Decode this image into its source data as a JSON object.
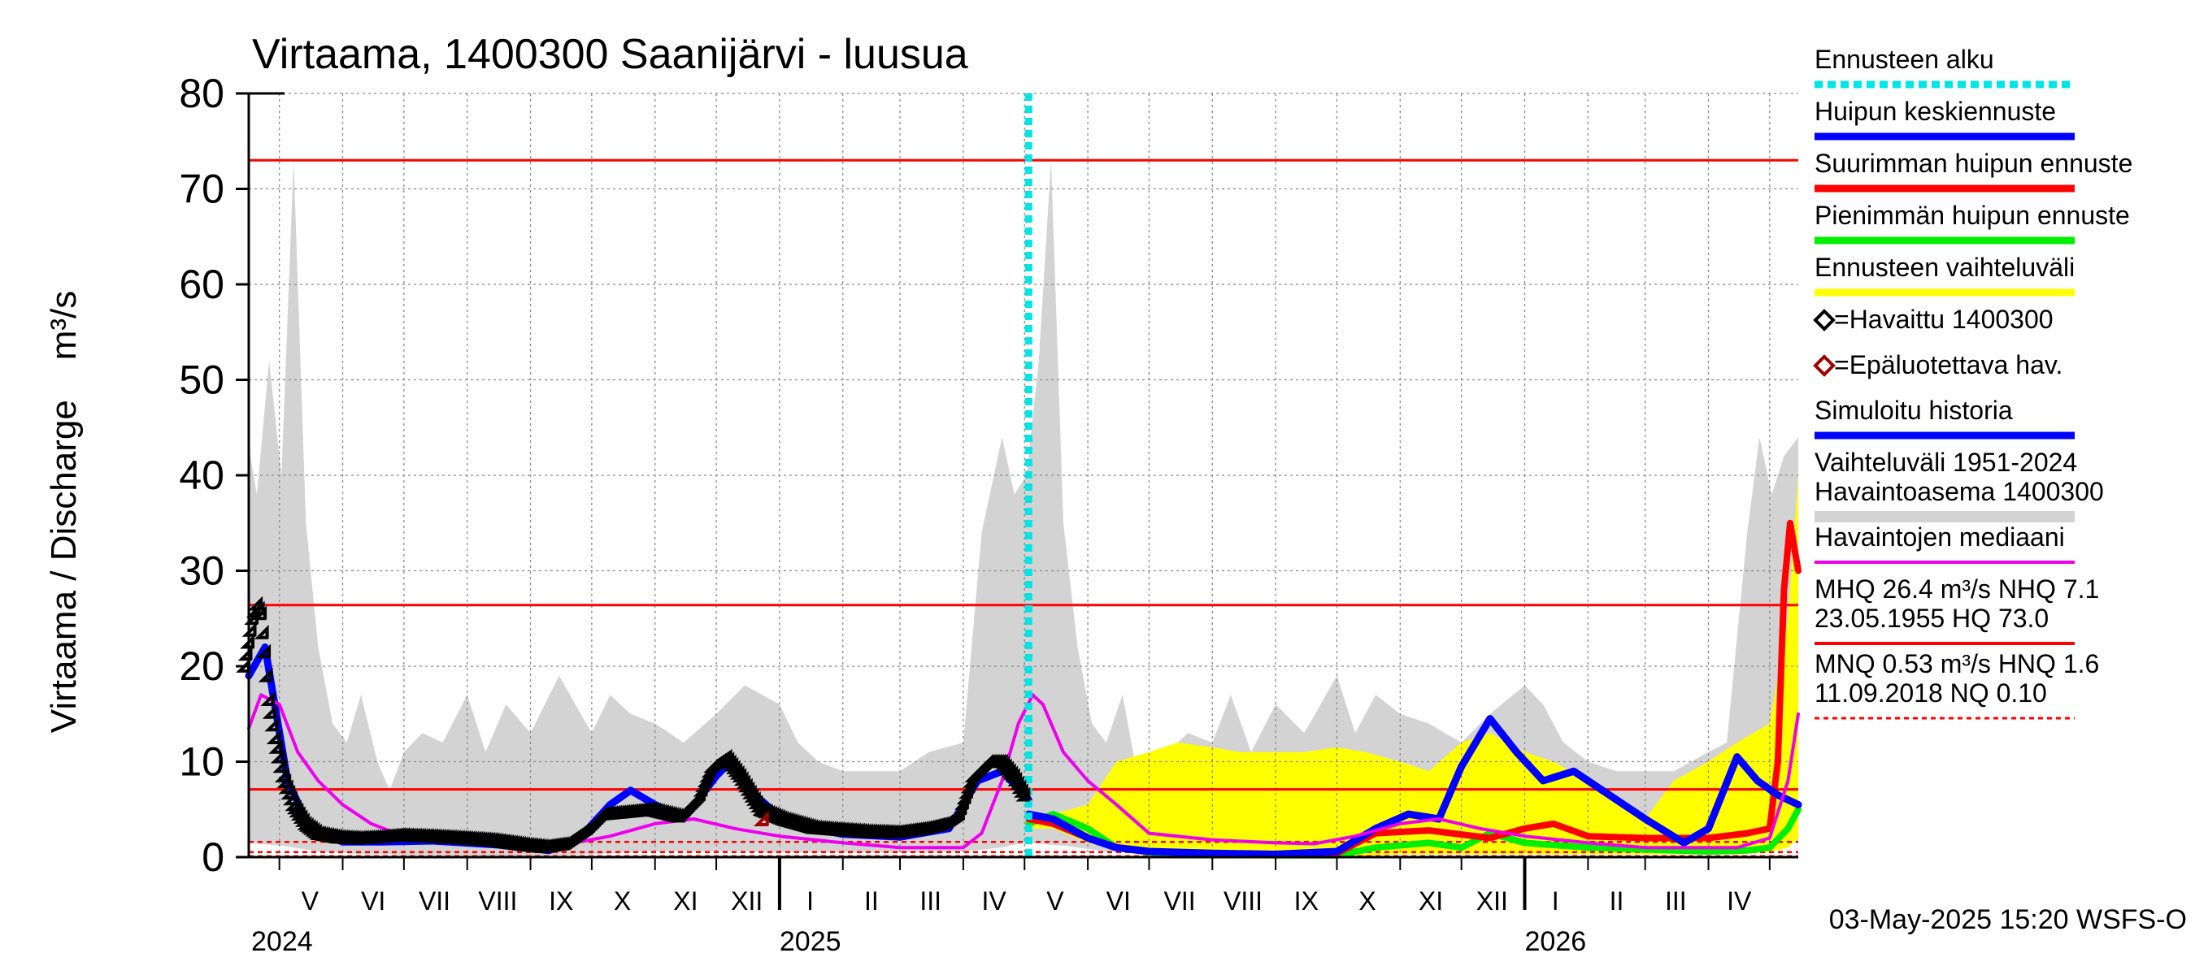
{
  "chart_data": {
    "type": "line",
    "title": "Virtaama, 1400300 Saanijärvi - luusua",
    "ylabel": "Virtaama / Discharge    m³/s",
    "ylim": [
      0,
      80
    ],
    "yticks": [
      0,
      10,
      20,
      30,
      40,
      50,
      60,
      70,
      80
    ],
    "x_range": [
      "2024-04-16",
      "2026-05-15"
    ],
    "x_grid": true,
    "y_grid": true,
    "months": [
      {
        "label": "V",
        "date": "2024-05-16"
      },
      {
        "label": "VI",
        "date": "2024-06-16"
      },
      {
        "label": "VII",
        "date": "2024-07-16"
      },
      {
        "label": "VIII",
        "date": "2024-08-16"
      },
      {
        "label": "IX",
        "date": "2024-09-16"
      },
      {
        "label": "X",
        "date": "2024-10-16"
      },
      {
        "label": "XI",
        "date": "2024-11-16"
      },
      {
        "label": "XII",
        "date": "2024-12-16"
      },
      {
        "label": "I",
        "date": "2025-01-16"
      },
      {
        "label": "II",
        "date": "2025-02-15"
      },
      {
        "label": "III",
        "date": "2025-03-16"
      },
      {
        "label": "IV",
        "date": "2025-04-16"
      },
      {
        "label": "V",
        "date": "2025-05-16"
      },
      {
        "label": "VI",
        "date": "2025-06-16"
      },
      {
        "label": "VII",
        "date": "2025-07-16"
      },
      {
        "label": "VIII",
        "date": "2025-08-16"
      },
      {
        "label": "IX",
        "date": "2025-09-16"
      },
      {
        "label": "X",
        "date": "2025-10-16"
      },
      {
        "label": "XI",
        "date": "2025-11-16"
      },
      {
        "label": "XII",
        "date": "2025-12-16"
      },
      {
        "label": "I",
        "date": "2026-01-16"
      },
      {
        "label": "II",
        "date": "2026-02-15"
      },
      {
        "label": "III",
        "date": "2026-03-16"
      },
      {
        "label": "IV",
        "date": "2026-04-16"
      }
    ],
    "month_bounds": [
      "2024-05-01",
      "2024-06-01",
      "2024-07-01",
      "2024-08-01",
      "2024-09-01",
      "2024-10-01",
      "2024-11-01",
      "2024-12-01",
      "2025-01-01",
      "2025-02-01",
      "2025-03-01",
      "2025-04-01",
      "2025-05-01",
      "2025-06-01",
      "2025-07-01",
      "2025-08-01",
      "2025-09-01",
      "2025-10-01",
      "2025-11-01",
      "2025-12-01",
      "2026-01-01",
      "2026-02-01",
      "2026-03-01",
      "2026-04-01",
      "2026-05-01"
    ],
    "year_labels": [
      {
        "label": "2024",
        "date": "2024-04-16"
      },
      {
        "label": "2025",
        "date": "2025-01-01"
      },
      {
        "label": "2026",
        "date": "2026-01-01"
      }
    ],
    "forecast_start": "2025-05-03",
    "reference_lines": [
      {
        "value": 73.0,
        "style": "solid",
        "color": "#ff0000"
      },
      {
        "value": 26.4,
        "style": "solid",
        "color": "#ff0000"
      },
      {
        "value": 7.1,
        "style": "solid",
        "color": "#ff0000"
      },
      {
        "value": 1.6,
        "style": "dashed",
        "color": "#ff0000"
      },
      {
        "value": 0.53,
        "style": "dashed",
        "color": "#ff0000"
      },
      {
        "value": 0.1,
        "style": "dashed",
        "color": "#ff0000"
      }
    ],
    "historical_range": {
      "x": [
        "2024-04-16",
        "2024-04-20",
        "2024-04-26",
        "2024-05-02",
        "2024-05-08",
        "2024-05-14",
        "2024-05-20",
        "2024-05-27",
        "2024-06-03",
        "2024-06-10",
        "2024-06-18",
        "2024-06-24",
        "2024-07-01",
        "2024-07-10",
        "2024-07-20",
        "2024-08-01",
        "2024-08-10",
        "2024-08-20",
        "2024-09-01",
        "2024-09-15",
        "2024-10-01",
        "2024-10-10",
        "2024-10-20",
        "2024-11-01",
        "2024-11-15",
        "2024-12-01",
        "2024-12-15",
        "2025-01-01",
        "2025-01-10",
        "2025-01-20",
        "2025-02-01",
        "2025-02-15",
        "2025-03-01",
        "2025-03-15",
        "2025-04-01",
        "2025-04-10",
        "2025-04-20",
        "2025-04-26",
        "2025-05-02",
        "2025-05-08",
        "2025-05-14",
        "2025-05-20",
        "2025-05-27",
        "2025-06-03",
        "2025-06-10",
        "2025-06-18",
        "2025-06-24",
        "2025-07-01",
        "2025-07-10",
        "2025-07-20",
        "2025-08-01",
        "2025-08-10",
        "2025-08-20",
        "2025-09-01",
        "2025-09-15",
        "2025-10-01",
        "2025-10-10",
        "2025-10-20",
        "2025-11-01",
        "2025-11-15",
        "2025-12-01",
        "2025-12-15",
        "2026-01-01",
        "2026-01-10",
        "2026-01-20",
        "2026-02-01",
        "2026-02-15",
        "2026-03-01",
        "2026-03-15",
        "2026-04-01",
        "2026-04-10",
        "2026-04-20",
        "2026-04-26",
        "2026-05-02",
        "2026-05-08",
        "2026-05-15"
      ],
      "low": [
        1.5,
        1.4,
        1.3,
        1.2,
        1.0,
        0.8,
        0.6,
        0.5,
        0.4,
        0.3,
        0.3,
        0.3,
        0.2,
        0.2,
        0.2,
        0.2,
        0.1,
        0.1,
        0.1,
        0.2,
        0.3,
        0.4,
        0.5,
        0.6,
        0.6,
        0.6,
        0.6,
        0.5,
        0.5,
        0.5,
        0.5,
        0.5,
        0.5,
        0.5,
        0.6,
        0.8,
        1.0,
        1.3,
        1.5,
        1.4,
        1.3,
        1.2,
        1.0,
        0.8,
        0.6,
        0.5,
        0.4,
        0.3,
        0.3,
        0.3,
        0.2,
        0.2,
        0.2,
        0.2,
        0.1,
        0.1,
        0.1,
        0.2,
        0.3,
        0.4,
        0.5,
        0.6,
        0.6,
        0.6,
        0.6,
        0.5,
        0.5,
        0.5,
        0.5,
        0.5,
        0.6,
        0.8,
        1.0,
        1.3,
        1.5,
        1.6
      ],
      "high": [
        43,
        38,
        52,
        40,
        73,
        35,
        22,
        14,
        12,
        17,
        10,
        7,
        11,
        13,
        12,
        17,
        11,
        16,
        13,
        19,
        13,
        17,
        15,
        14,
        12,
        15,
        18,
        16,
        12,
        10,
        9,
        9,
        9,
        11,
        12,
        34,
        44,
        38,
        40,
        52,
        73,
        35,
        22,
        14,
        12,
        17,
        10,
        7,
        11,
        13,
        12,
        17,
        11,
        16,
        13,
        19,
        13,
        17,
        15,
        14,
        12,
        15,
        18,
        16,
        12,
        10,
        9,
        9,
        9,
        11,
        12,
        34,
        44,
        38,
        42,
        44
      ]
    },
    "forecast_band": {
      "x": [
        "2025-05-03",
        "2025-05-15",
        "2025-06-01",
        "2025-06-15",
        "2025-07-01",
        "2025-07-15",
        "2025-08-01",
        "2025-08-15",
        "2025-09-01",
        "2025-09-15",
        "2025-10-01",
        "2025-10-15",
        "2025-11-01",
        "2025-11-15",
        "2025-12-01",
        "2025-12-15",
        "2026-01-01",
        "2026-01-15",
        "2026-02-01",
        "2026-02-15",
        "2026-03-01",
        "2026-03-15",
        "2026-04-01",
        "2026-04-15",
        "2026-05-01",
        "2026-05-10",
        "2026-05-15"
      ],
      "low": [
        3.0,
        3.0,
        1.5,
        0.8,
        0.6,
        0.4,
        0.3,
        0.3,
        0.2,
        0.2,
        0.2,
        0.2,
        0.3,
        0.3,
        0.3,
        0.3,
        0.3,
        0.3,
        0.3,
        0.3,
        0.3,
        0.3,
        0.3,
        0.3,
        0.5,
        1.0,
        2.0
      ],
      "high": [
        4.0,
        4.5,
        5.5,
        10.0,
        11.0,
        12.0,
        11.5,
        11.0,
        11.0,
        11.0,
        11.5,
        11.0,
        10.0,
        9.0,
        12.0,
        13.0,
        11.0,
        10.0,
        8.0,
        6.0,
        4.0,
        8.0,
        10.0,
        12.0,
        14.0,
        25.0,
        40.0
      ]
    },
    "series": [
      {
        "name": "Havaittu 1400300",
        "kind": "observed",
        "color": "#000000",
        "x": [
          "2024-04-16",
          "2024-04-18",
          "2024-04-20",
          "2024-04-22",
          "2024-04-24",
          "2024-04-26",
          "2024-04-28",
          "2024-05-01",
          "2024-05-05",
          "2024-05-10",
          "2024-05-16",
          "2024-05-22",
          "2024-06-01",
          "2024-06-10",
          "2024-06-20",
          "2024-07-01",
          "2024-07-15",
          "2024-08-01",
          "2024-08-15",
          "2024-09-01",
          "2024-09-10",
          "2024-09-20",
          "2024-10-01",
          "2024-10-08",
          "2024-11-01",
          "2024-11-15",
          "2024-11-25",
          "2024-12-01",
          "2024-12-08",
          "2024-12-15",
          "2024-12-25",
          "2025-01-05",
          "2025-01-20",
          "2025-02-01",
          "2025-02-15",
          "2025-03-01",
          "2025-03-15",
          "2025-03-25",
          "2025-04-01",
          "2025-04-08",
          "2025-04-15",
          "2025-04-22",
          "2025-04-28",
          "2025-05-03"
        ],
        "y": [
          19.5,
          22.0,
          24.5,
          26.0,
          25.0,
          21.0,
          16.0,
          12.0,
          8.0,
          5.0,
          3.0,
          2.0,
          1.6,
          1.5,
          1.6,
          1.8,
          1.7,
          1.5,
          1.3,
          0.8,
          0.6,
          0.9,
          2.5,
          4.0,
          4.5,
          3.8,
          6.0,
          9.0,
          10.0,
          8.0,
          4.5,
          3.5,
          2.6,
          2.4,
          2.2,
          2.1,
          2.5,
          3.0,
          4.0,
          8.0,
          9.5,
          9.5,
          8.0,
          6.0
        ]
      },
      {
        "name": "Epäluotettava hav.",
        "kind": "unreliable",
        "color": "#a00000",
        "x": [
          "2024-12-26"
        ],
        "y": [
          3.4
        ]
      },
      {
        "name": "Simuloitu historia",
        "kind": "simulated",
        "color": "#0000ff",
        "x": [
          "2024-04-16",
          "2024-04-24",
          "2024-05-05",
          "2024-05-16",
          "2024-06-01",
          "2024-06-20",
          "2024-07-15",
          "2024-08-15",
          "2024-09-10",
          "2024-09-25",
          "2024-10-10",
          "2024-10-20",
          "2024-11-01",
          "2024-11-15",
          "2024-12-01",
          "2024-12-08",
          "2024-12-20",
          "2025-01-05",
          "2025-02-01",
          "2025-03-01",
          "2025-03-25",
          "2025-04-08",
          "2025-04-20",
          "2025-05-03"
        ],
        "y": [
          19.0,
          22.0,
          8.0,
          3.0,
          1.6,
          1.6,
          1.7,
          1.3,
          0.7,
          2.0,
          5.5,
          7.0,
          5.5,
          4.0,
          8.5,
          10.0,
          6.5,
          3.5,
          2.4,
          2.1,
          3.0,
          8.0,
          9.0,
          6.0
        ]
      },
      {
        "name": "Huipun keskiennuste",
        "kind": "forecast_mid",
        "color": "#0000ff",
        "x": [
          "2025-05-03",
          "2025-05-15",
          "2025-06-01",
          "2025-06-15",
          "2025-07-01",
          "2025-08-01",
          "2025-09-01",
          "2025-10-01",
          "2025-10-20",
          "2025-11-05",
          "2025-11-20",
          "2025-12-01",
          "2025-12-15",
          "2025-12-28",
          "2026-01-10",
          "2026-01-25",
          "2026-02-15",
          "2026-03-01",
          "2026-03-20",
          "2026-04-01",
          "2026-04-15",
          "2026-04-25",
          "2026-05-05",
          "2026-05-15"
        ],
        "y": [
          4.5,
          4.0,
          2.0,
          1.0,
          0.6,
          0.4,
          0.3,
          0.6,
          3.0,
          4.5,
          4.0,
          9.5,
          14.5,
          11.0,
          8.0,
          9.0,
          6.0,
          4.0,
          1.5,
          3.0,
          10.5,
          8.0,
          6.5,
          5.5
        ]
      },
      {
        "name": "Suurimman huipun ennuste",
        "kind": "forecast_max",
        "color": "#ff0000",
        "x": [
          "2025-05-03",
          "2025-05-15",
          "2025-06-01",
          "2025-06-15",
          "2025-07-01",
          "2025-08-01",
          "2025-09-01",
          "2025-10-01",
          "2025-10-20",
          "2025-11-15",
          "2025-12-15",
          "2026-01-01",
          "2026-01-15",
          "2026-02-01",
          "2026-03-01",
          "2026-04-01",
          "2026-04-20",
          "2026-05-01",
          "2026-05-05",
          "2026-05-08",
          "2026-05-11",
          "2026-05-15"
        ],
        "y": [
          4.0,
          3.5,
          2.0,
          1.0,
          0.6,
          0.4,
          0.3,
          0.4,
          2.5,
          2.8,
          2.0,
          3.0,
          3.5,
          2.2,
          2.0,
          2.0,
          2.5,
          3.0,
          10.0,
          28.0,
          35.0,
          30.0
        ]
      },
      {
        "name": "Pienimmän huipun ennuste",
        "kind": "forecast_min",
        "color": "#00ee00",
        "x": [
          "2025-05-03",
          "2025-05-15",
          "2025-06-01",
          "2025-06-15",
          "2025-07-01",
          "2025-08-01",
          "2025-09-01",
          "2025-10-01",
          "2025-10-20",
          "2025-11-15",
          "2025-12-01",
          "2025-12-15",
          "2026-01-01",
          "2026-02-01",
          "2026-03-01",
          "2026-04-01",
          "2026-04-20",
          "2026-05-01",
          "2026-05-10",
          "2026-05-15"
        ],
        "y": [
          3.5,
          4.5,
          3.0,
          1.0,
          0.5,
          0.3,
          0.2,
          0.2,
          1.0,
          1.5,
          1.0,
          2.5,
          1.5,
          1.0,
          0.8,
          0.6,
          0.7,
          1.0,
          3.0,
          5.0
        ]
      },
      {
        "name": "Havaintojen mediaani",
        "kind": "median",
        "color": "#ee00ee",
        "x": [
          "2024-04-16",
          "2024-04-22",
          "2024-05-01",
          "2024-05-10",
          "2024-05-20",
          "2024-06-01",
          "2024-06-15",
          "2024-07-01",
          "2024-08-01",
          "2024-09-01",
          "2024-09-20",
          "2024-10-10",
          "2024-11-01",
          "2024-11-20",
          "2024-12-10",
          "2025-01-01",
          "2025-02-01",
          "2025-03-01",
          "2025-04-01",
          "2025-04-10",
          "2025-04-20",
          "2025-04-28",
          "2025-05-05",
          "2025-05-10",
          "2025-05-20",
          "2025-06-01",
          "2025-06-15",
          "2025-07-01",
          "2025-08-01",
          "2025-09-01",
          "2025-09-20",
          "2025-10-10",
          "2025-11-01",
          "2025-11-20",
          "2025-12-10",
          "2026-01-01",
          "2026-02-01",
          "2026-03-01",
          "2026-04-01",
          "2026-04-15",
          "2026-05-01",
          "2026-05-10",
          "2026-05-15"
        ],
        "y": [
          13.5,
          17.0,
          16.0,
          11.0,
          8.0,
          5.5,
          3.5,
          2.2,
          1.8,
          1.5,
          1.4,
          2.2,
          3.5,
          4.0,
          3.0,
          2.2,
          1.5,
          1.0,
          1.0,
          2.5,
          8.0,
          14.0,
          17.0,
          16.0,
          11.0,
          8.0,
          5.5,
          2.5,
          1.8,
          1.5,
          1.4,
          2.2,
          3.5,
          4.0,
          3.0,
          2.2,
          1.5,
          1.0,
          1.0,
          1.0,
          2.0,
          8.0,
          15.0
        ]
      }
    ],
    "legend": {
      "placement": "right",
      "entries": [
        {
          "label": "Ennusteen alku",
          "type": "dashed",
          "color": "#00e5e5"
        },
        {
          "label": "Huipun keskiennuste",
          "type": "line",
          "color": "#0000ff"
        },
        {
          "label": "Suurimman huipun ennuste",
          "type": "line",
          "color": "#ff0000"
        },
        {
          "label": "Pienimmän huipun ennuste",
          "type": "line",
          "color": "#00ee00"
        },
        {
          "label": "Ennusteen vaihteluväli",
          "type": "line",
          "color": "#ffff00"
        },
        {
          "label": "=Havaittu 1400300",
          "type": "marker",
          "color": "#000000"
        },
        {
          "label": "=Epäluotettava hav.",
          "type": "marker",
          "color": "#a00000"
        },
        {
          "label": "Simuloitu historia",
          "type": "line",
          "color": "#0000ff"
        },
        {
          "label": "Vaihteluväli 1951-2024",
          "label2": " Havaintoasema 1400300",
          "type": "line",
          "color": "#d3d3d3"
        },
        {
          "label": "Havaintojen mediaani",
          "type": "thin",
          "color": "#ee00ee"
        },
        {
          "label": "MHQ 26.4 m³/s NHQ  7.1",
          "label2": "23.05.1955 HQ 73.0",
          "type": "thin",
          "color": "#ff0000"
        },
        {
          "label": "MNQ 0.53 m³/s HNQ  1.6",
          "label2": "11.09.2018 NQ 0.10",
          "type": "dashed-thin",
          "color": "#ff0000"
        }
      ]
    },
    "footer": "03-May-2025 15:20 WSFS-O"
  }
}
